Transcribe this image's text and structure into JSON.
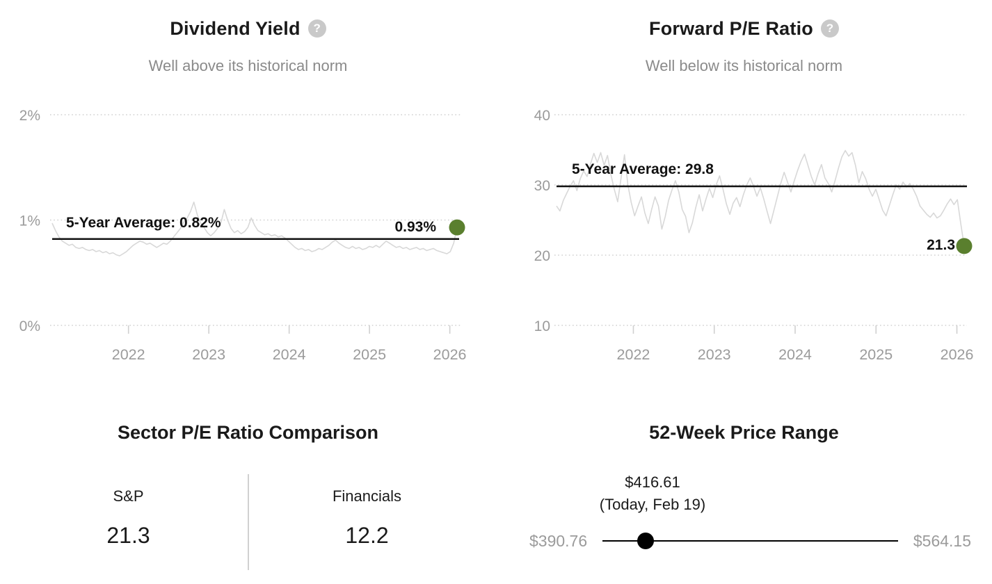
{
  "colors": {
    "text_dark": "#1a1a1a",
    "text_gray": "#8a8a8a",
    "axis_gray": "#9b9b9b",
    "series_line": "#d8d8d8",
    "grid_line": "#d0d0d0",
    "average_line": "#111111",
    "marker_green": "#5a7f2e",
    "slider_black": "#000000",
    "help_icon_bg": "#c9c9c9",
    "divider": "#d0d0d0"
  },
  "dividend_panel": {
    "title": "Dividend Yield",
    "help_icon_glyph": "?",
    "subtitle": "Well above its historical norm",
    "average_label": "5-Year Average: 0.82%",
    "current_label": "0.93%"
  },
  "pe_panel": {
    "title": "Forward P/E Ratio",
    "help_icon_glyph": "?",
    "subtitle": "Well below its historical norm",
    "average_label": "5-Year Average: 29.8",
    "current_label": "21.3"
  },
  "sector_panel": {
    "title": "Sector P/E Ratio Comparison",
    "columns": [
      {
        "label": "S&P",
        "value": "21.3"
      },
      {
        "label": "Financials",
        "value": "12.2"
      }
    ]
  },
  "range_panel": {
    "title": "52-Week Price Range",
    "current_price": "$416.61",
    "current_note": "(Today, Feb 19)",
    "low": "$390.76",
    "high": "$564.15",
    "position_pct": 14.5
  },
  "chart_data": [
    {
      "type": "line",
      "title": "Dividend Yield",
      "subtitle": "Well above its historical norm",
      "unit": "%",
      "xlim": [
        2021.05,
        2026.09
      ],
      "x_start": 2021.05,
      "x_step": 0.042,
      "xticks": [
        2022,
        2023,
        2024,
        2025,
        2026
      ],
      "ylim": [
        0,
        2
      ],
      "yticks": [
        {
          "value": 2,
          "label": "2%"
        },
        {
          "value": 1,
          "label": "1%"
        },
        {
          "value": 0,
          "label": "0%"
        }
      ],
      "grid": "dotted",
      "average": 0.82,
      "average_label": "5-Year Average: 0.82%",
      "current": 0.93,
      "current_label": "0.93%",
      "values": [
        0.97,
        0.9,
        0.84,
        0.8,
        0.78,
        0.76,
        0.77,
        0.74,
        0.73,
        0.74,
        0.72,
        0.71,
        0.72,
        0.7,
        0.71,
        0.69,
        0.7,
        0.68,
        0.69,
        0.67,
        0.66,
        0.68,
        0.7,
        0.73,
        0.76,
        0.78,
        0.8,
        0.79,
        0.77,
        0.78,
        0.76,
        0.74,
        0.76,
        0.78,
        0.77,
        0.8,
        0.84,
        0.88,
        0.92,
        0.98,
        1.02,
        1.08,
        1.17,
        1.05,
        0.97,
        0.93,
        0.88,
        0.85,
        0.88,
        0.92,
        0.97,
        1.1,
        1.0,
        0.92,
        0.88,
        0.9,
        0.87,
        0.89,
        0.93,
        1.02,
        0.95,
        0.9,
        0.88,
        0.86,
        0.87,
        0.85,
        0.86,
        0.84,
        0.85,
        0.83,
        0.8,
        0.77,
        0.74,
        0.72,
        0.73,
        0.71,
        0.72,
        0.7,
        0.71,
        0.73,
        0.72,
        0.74,
        0.76,
        0.79,
        0.81,
        0.78,
        0.76,
        0.74,
        0.73,
        0.75,
        0.73,
        0.74,
        0.72,
        0.73,
        0.75,
        0.74,
        0.76,
        0.74,
        0.77,
        0.8,
        0.78,
        0.76,
        0.74,
        0.75,
        0.73,
        0.74,
        0.72,
        0.73,
        0.74,
        0.72,
        0.73,
        0.71,
        0.72,
        0.73,
        0.71,
        0.7,
        0.69,
        0.68,
        0.7,
        0.78,
        0.93
      ]
    },
    {
      "type": "line",
      "title": "Forward P/E Ratio",
      "subtitle": "Well below its historical norm",
      "unit": "",
      "xlim": [
        2021.05,
        2026.09
      ],
      "x_start": 2021.05,
      "x_step": 0.042,
      "xticks": [
        2022,
        2023,
        2024,
        2025,
        2026
      ],
      "ylim": [
        10,
        40
      ],
      "yticks": [
        {
          "value": 40,
          "label": "40"
        },
        {
          "value": 30,
          "label": "30"
        },
        {
          "value": 20,
          "label": "20"
        },
        {
          "value": 10,
          "label": "10"
        }
      ],
      "grid": "dotted",
      "average": 29.8,
      "average_label": "5-Year Average: 29.8",
      "current": 21.3,
      "current_label": "21.3",
      "values": [
        27.0,
        26.3,
        27.8,
        28.8,
        29.8,
        30.6,
        29.2,
        30.9,
        32.0,
        31.2,
        33.0,
        34.5,
        33.2,
        34.6,
        32.8,
        34.2,
        31.5,
        29.4,
        27.6,
        31.0,
        34.3,
        30.0,
        27.5,
        25.6,
        27.0,
        28.3,
        26.0,
        24.5,
        26.5,
        28.3,
        27.0,
        23.7,
        25.5,
        27.8,
        29.3,
        30.6,
        29.0,
        26.5,
        25.5,
        23.2,
        24.6,
        26.8,
        28.6,
        26.3,
        28.0,
        29.5,
        28.2,
        30.0,
        31.3,
        29.4,
        27.3,
        25.8,
        27.4,
        28.2,
        26.9,
        28.6,
        30.0,
        31.0,
        29.8,
        28.4,
        29.6,
        28.0,
        26.2,
        24.5,
        26.4,
        28.3,
        30.2,
        31.8,
        30.4,
        29.0,
        30.6,
        32.1,
        33.4,
        34.4,
        32.8,
        31.2,
        30.0,
        31.6,
        32.9,
        31.0,
        30.2,
        29.0,
        30.6,
        32.4,
        34.0,
        34.9,
        34.1,
        34.6,
        32.8,
        30.3,
        31.9,
        30.9,
        29.4,
        28.4,
        29.4,
        27.9,
        26.4,
        25.6,
        27.1,
        28.6,
        30.0,
        29.4,
        30.4,
        29.7,
        30.2,
        29.4,
        28.4,
        27.0,
        26.4,
        25.8,
        25.4,
        26.0,
        25.3,
        25.6,
        26.4,
        27.3,
        28.0,
        27.2,
        27.9,
        24.5,
        21.3
      ]
    }
  ]
}
